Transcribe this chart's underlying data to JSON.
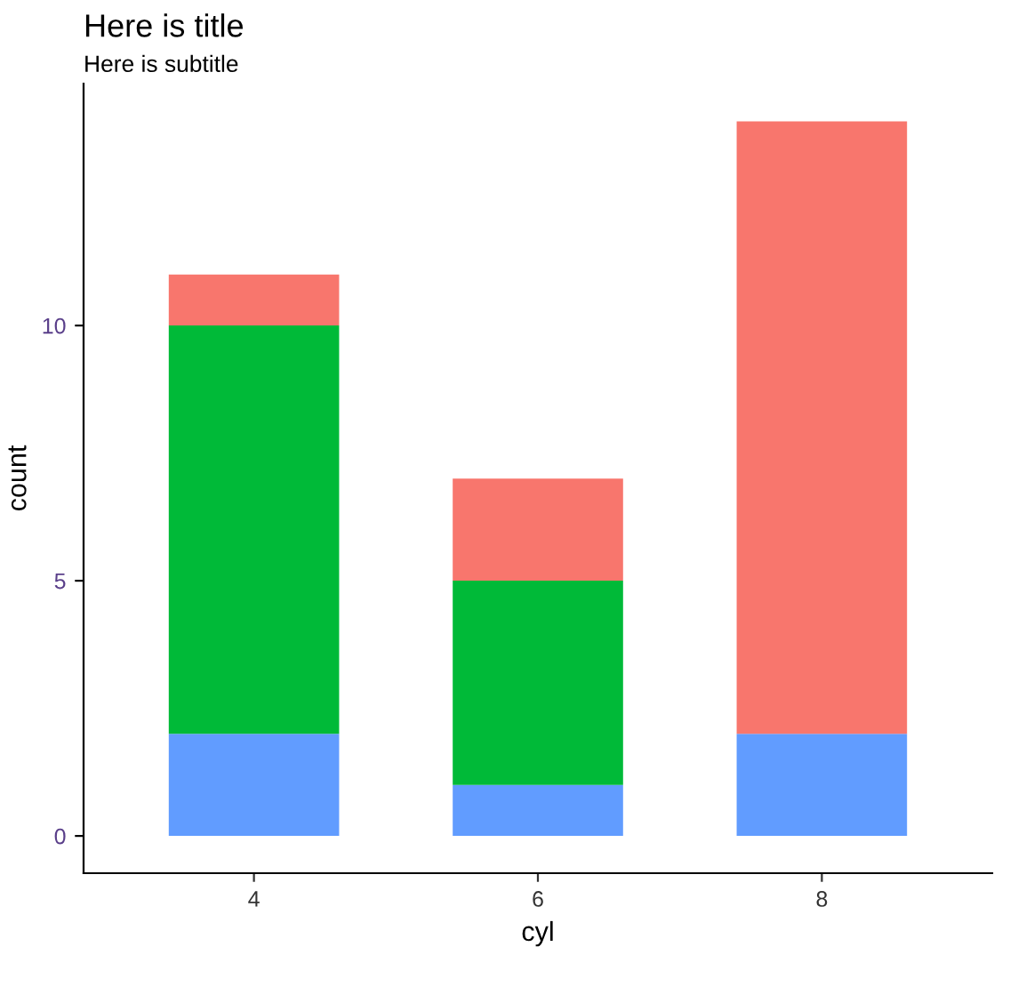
{
  "chart_data": {
    "type": "bar",
    "title": "Here is title",
    "subtitle": "Here is subtitle",
    "xlabel": "cyl",
    "ylabel": "count",
    "categories": [
      "4",
      "6",
      "8"
    ],
    "stacked": true,
    "series": [
      {
        "color": "#619cff",
        "values": [
          2,
          1,
          2
        ]
      },
      {
        "color": "#00ba38",
        "values": [
          8,
          4,
          0
        ]
      },
      {
        "color": "#f8766d",
        "values": [
          1,
          2,
          12
        ]
      }
    ],
    "ylim": [
      -0.73,
      14.74
    ],
    "yticks": [
      0,
      5,
      10
    ],
    "grid": false,
    "legend": false
  }
}
